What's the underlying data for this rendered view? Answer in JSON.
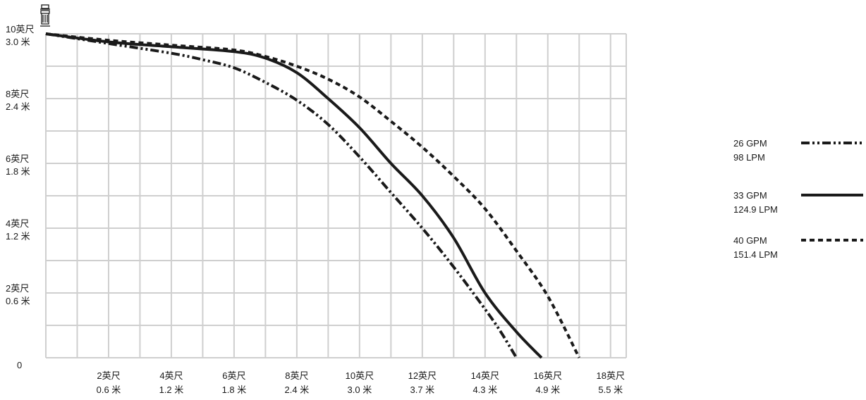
{
  "chart_data": {
    "type": "line",
    "xlabel": "",
    "ylabel": "",
    "xlim": [
      0,
      18.5
    ],
    "ylim": [
      0,
      10
    ],
    "grid": true,
    "legend_position": "right",
    "x_ticks": [
      {
        "value": 2,
        "line1": "2英尺",
        "line2": "0.6 米"
      },
      {
        "value": 4,
        "line1": "4英尺",
        "line2": "1.2 米"
      },
      {
        "value": 6,
        "line1": "6英尺",
        "line2": "1.8 米"
      },
      {
        "value": 8,
        "line1": "8英尺",
        "line2": "2.4 米"
      },
      {
        "value": 10,
        "line1": "10英尺",
        "line2": "3.0 米"
      },
      {
        "value": 12,
        "line1": "12英尺",
        "line2": "3.7 米"
      },
      {
        "value": 14,
        "line1": "14英尺",
        "line2": "4.3 米"
      },
      {
        "value": 16,
        "line1": "16英尺",
        "line2": "4.9 米"
      },
      {
        "value": 18,
        "line1": "18英尺",
        "line2": "5.5 米"
      }
    ],
    "y_ticks": [
      {
        "value": 0,
        "line1": "0",
        "line2": ""
      },
      {
        "value": 2,
        "line1": "2英尺",
        "line2": "0.6 米"
      },
      {
        "value": 4,
        "line1": "4英尺",
        "line2": "1.2 米"
      },
      {
        "value": 6,
        "line1": "6英尺",
        "line2": "1.8 米"
      },
      {
        "value": 8,
        "line1": "8英尺",
        "line2": "2.4 米"
      },
      {
        "value": 10,
        "line1": "10英尺",
        "line2": "3.0 米"
      }
    ],
    "series": [
      {
        "name": "26 GPM",
        "name2": "98 LPM",
        "dash": "dash-dot-dot",
        "color": "#1a1a1a",
        "x": [
          0,
          2,
          4,
          5,
          6,
          7,
          8,
          9,
          10,
          11,
          12,
          13,
          14,
          14.5,
          15
        ],
        "y": [
          10,
          9.7,
          9.4,
          9.2,
          8.95,
          8.5,
          7.95,
          7.2,
          6.2,
          5.1,
          4.0,
          2.8,
          1.5,
          0.8,
          0
        ]
      },
      {
        "name": "33 GPM",
        "name2": "124.9 LPM",
        "dash": "solid",
        "color": "#1a1a1a",
        "x": [
          0,
          2,
          4,
          6,
          7,
          8,
          9,
          10,
          11,
          12,
          13,
          14,
          15,
          15.8
        ],
        "y": [
          10,
          9.75,
          9.6,
          9.45,
          9.25,
          8.8,
          8.0,
          7.1,
          6.0,
          5.0,
          3.7,
          2.0,
          0.8,
          0
        ]
      },
      {
        "name": "40 GPM",
        "name2": "151.4 LPM",
        "dash": "dashed",
        "color": "#1a1a1a",
        "x": [
          0,
          2,
          4,
          6,
          7,
          8,
          9,
          10,
          11,
          12,
          13,
          14,
          15,
          16,
          17
        ],
        "y": [
          10,
          9.8,
          9.65,
          9.5,
          9.3,
          9.0,
          8.6,
          8.05,
          7.3,
          6.5,
          5.6,
          4.6,
          3.3,
          1.9,
          0
        ]
      }
    ]
  }
}
